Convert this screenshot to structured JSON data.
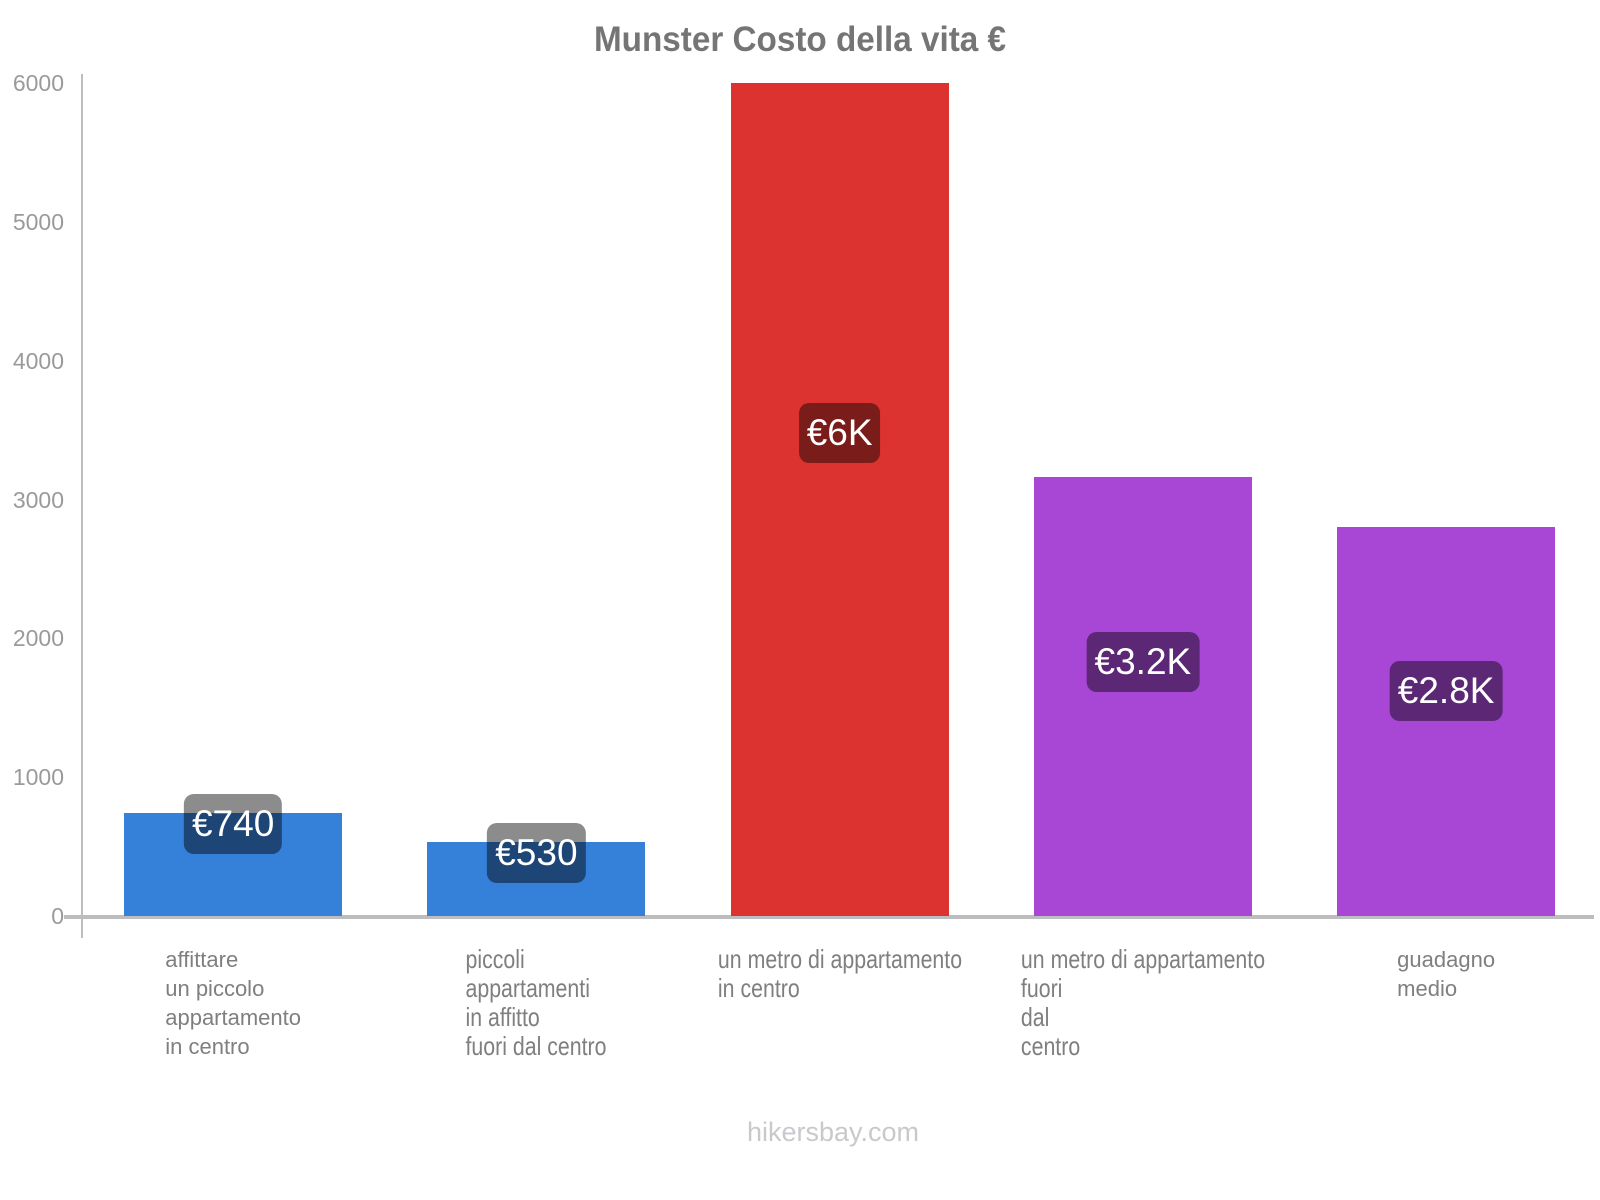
{
  "chart_data": {
    "type": "bar",
    "title": "Munster Costo della vita €",
    "categories": [
      "affittare\nun piccolo\nappartamento\nin centro",
      "piccoli\nappartamenti\nin affitto\nfuori dal centro",
      "un metro di appartamento\nin centro",
      "un metro di appartamento\nfuori\ndal\ncentro",
      "guadagno\nmedio"
    ],
    "values": [
      740,
      530,
      6000,
      3160,
      2800
    ],
    "value_labels": [
      "€740",
      "€530",
      "€6K",
      "€3.2K",
      "€2.8K"
    ],
    "bar_colors": [
      "#3580d9",
      "#3580d9",
      "#dc3330",
      "#a847d6",
      "#a847d6"
    ],
    "y_ticks": [
      0,
      1000,
      2000,
      3000,
      4000,
      5000,
      6000
    ],
    "ylim": [
      0,
      6000
    ],
    "xlabel": "",
    "ylabel": "",
    "grid": false,
    "legend": "none",
    "currency": "€",
    "badge_overlay_color": "rgba(0,0,0,0.45)",
    "axis_color": "#bdbdbf",
    "title_color": "#757575",
    "tick_label_color": "#9a9a9a",
    "category_label_color": "#7f7f7f"
  },
  "footer": {
    "watermark": "hikersbay.com"
  }
}
